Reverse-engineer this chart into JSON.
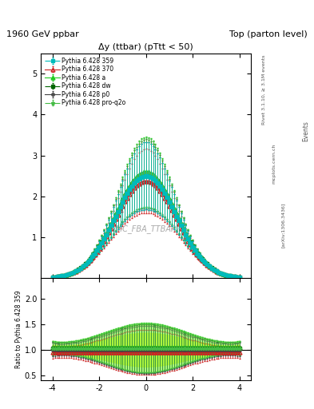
{
  "title_left": "1960 GeV ppbar",
  "title_right": "Top (parton level)",
  "ylabel_main": "Events",
  "ylabel_ratio": "Ratio to Pythia 6.428 359",
  "subplot_title": "Δy (ttbar) (pTtt < 50)",
  "watermark": "(MC_FBA_TTBAR)",
  "rivet_label": "Rivet 3.1.10, ≥ 3.1M events",
  "arxiv_label": "[arXiv:1306.3436]",
  "mcplots_label": "mcplots.cern.ch",
  "xlim": [
    -4.5,
    4.5
  ],
  "ylim_main": [
    0,
    5.5
  ],
  "ylim_ratio": [
    0.4,
    2.4
  ],
  "yticks_main": [
    1,
    2,
    3,
    4,
    5
  ],
  "yticks_ratio": [
    0.5,
    1.0,
    1.5,
    2.0
  ],
  "xticks": [
    -4,
    -2,
    0,
    2,
    4
  ],
  "series": [
    {
      "label": "Pythia 6.428 359",
      "color": "#00bbbb",
      "marker": "s",
      "markersize": 2.5,
      "linestyle": "-.",
      "linewidth": 0.8,
      "fillstyle": "full"
    },
    {
      "label": "Pythia 6.428 370",
      "color": "#cc2222",
      "marker": "^",
      "markersize": 3.5,
      "linestyle": "-",
      "linewidth": 0.8,
      "fillstyle": "none"
    },
    {
      "label": "Pythia 6.428 a",
      "color": "#22cc22",
      "marker": "^",
      "markersize": 3.5,
      "linestyle": "-",
      "linewidth": 0.8,
      "fillstyle": "full"
    },
    {
      "label": "Pythia 6.428 dw",
      "color": "#006600",
      "marker": "s",
      "markersize": 2.5,
      "linestyle": "-.",
      "linewidth": 0.8,
      "fillstyle": "full"
    },
    {
      "label": "Pythia 6.428 p0",
      "color": "#444444",
      "marker": "o",
      "markersize": 2.5,
      "linestyle": "-",
      "linewidth": 0.8,
      "fillstyle": "none"
    },
    {
      "label": "Pythia 6.428 pro-q2o",
      "color": "#44bb44",
      "marker": "*",
      "markersize": 3.5,
      "linestyle": "-.",
      "linewidth": 0.8,
      "fillstyle": "full"
    }
  ],
  "band_colors": [
    "#ffff00",
    "#88ee44"
  ],
  "background_color": "#ffffff"
}
